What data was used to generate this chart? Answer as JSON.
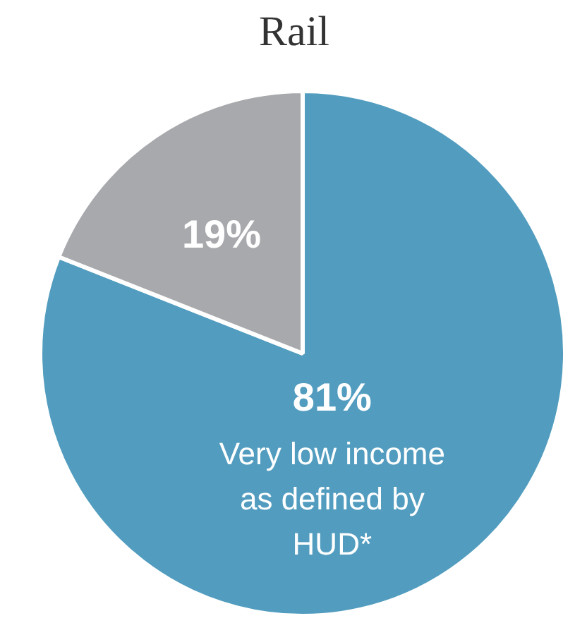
{
  "chart_data": {
    "type": "pie",
    "title": "Rail",
    "categories": [
      "Very low income as defined by HUD*",
      null
    ],
    "values": [
      81,
      19
    ],
    "colors": [
      "#529dbf",
      "#a7a9ac"
    ],
    "value_labels": [
      "81%",
      "19%"
    ]
  }
}
